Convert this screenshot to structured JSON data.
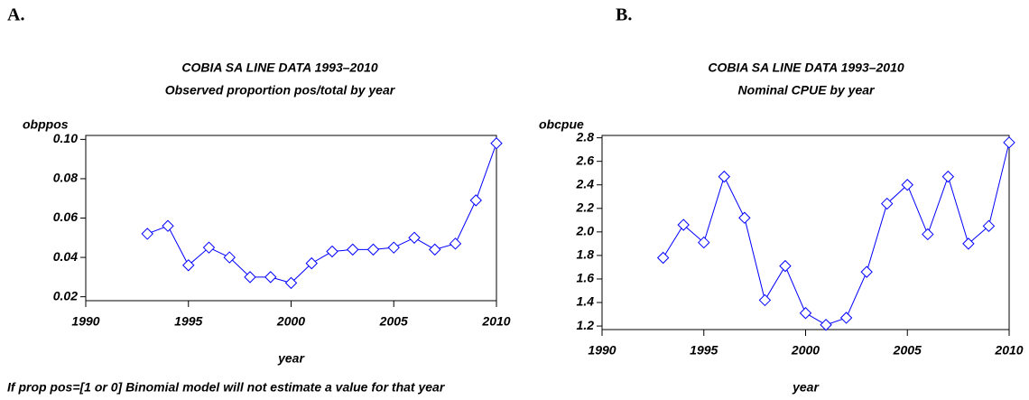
{
  "chart_data": [
    {
      "type": "line",
      "panel_label": "A.",
      "title": "COBIA SA LINE DATA 1993–2010",
      "subtitle": "Observed proportion pos/total by year",
      "y_label": "obppos",
      "x_label": "year",
      "note": "If prop pos=[1 or 0] Binomial model will not estimate a value for that year",
      "x": [
        1993,
        1994,
        1995,
        1996,
        1997,
        1998,
        1999,
        2000,
        2001,
        2002,
        2003,
        2004,
        2005,
        2006,
        2007,
        2008,
        2009,
        2010
      ],
      "values": [
        0.052,
        0.056,
        0.036,
        0.045,
        0.04,
        0.03,
        0.03,
        0.027,
        0.037,
        0.043,
        0.044,
        0.044,
        0.045,
        0.05,
        0.044,
        0.047,
        0.069,
        0.098
      ],
      "color": "#0000ff",
      "marker": "diamond",
      "xlim": [
        1990,
        2010
      ],
      "xticks": [
        1990,
        1995,
        2000,
        2005,
        2010
      ],
      "ylim": [
        0.018,
        0.102
      ],
      "yticks": [
        0.02,
        0.04,
        0.06,
        0.08,
        {
          "value": 0.1,
          "label": "0.10"
        }
      ]
    },
    {
      "type": "line",
      "panel_label": "B.",
      "title": "COBIA SA LINE DATA 1993–2010",
      "subtitle": "Nominal CPUE by year",
      "y_label": "obcpue",
      "x_label": "year",
      "x": [
        1993,
        1994,
        1995,
        1996,
        1997,
        1998,
        1999,
        2000,
        2001,
        2002,
        2003,
        2004,
        2005,
        2006,
        2007,
        2008,
        2009,
        2010
      ],
      "values": [
        1.78,
        2.06,
        1.91,
        2.47,
        2.12,
        1.42,
        1.71,
        1.31,
        1.21,
        1.27,
        1.66,
        2.24,
        2.4,
        1.98,
        2.47,
        1.9,
        2.05,
        2.76
      ],
      "color": "#0000ff",
      "marker": "diamond",
      "xlim": [
        1990,
        2010
      ],
      "xticks": [
        1990,
        1995,
        2000,
        2005,
        2010
      ],
      "ylim": [
        1.17,
        2.82
      ],
      "yticks": [
        1.2,
        1.4,
        1.6,
        1.8,
        {
          "value": 2.0,
          "label": "2.0"
        },
        2.2,
        2.4,
        2.6,
        2.8
      ]
    }
  ]
}
